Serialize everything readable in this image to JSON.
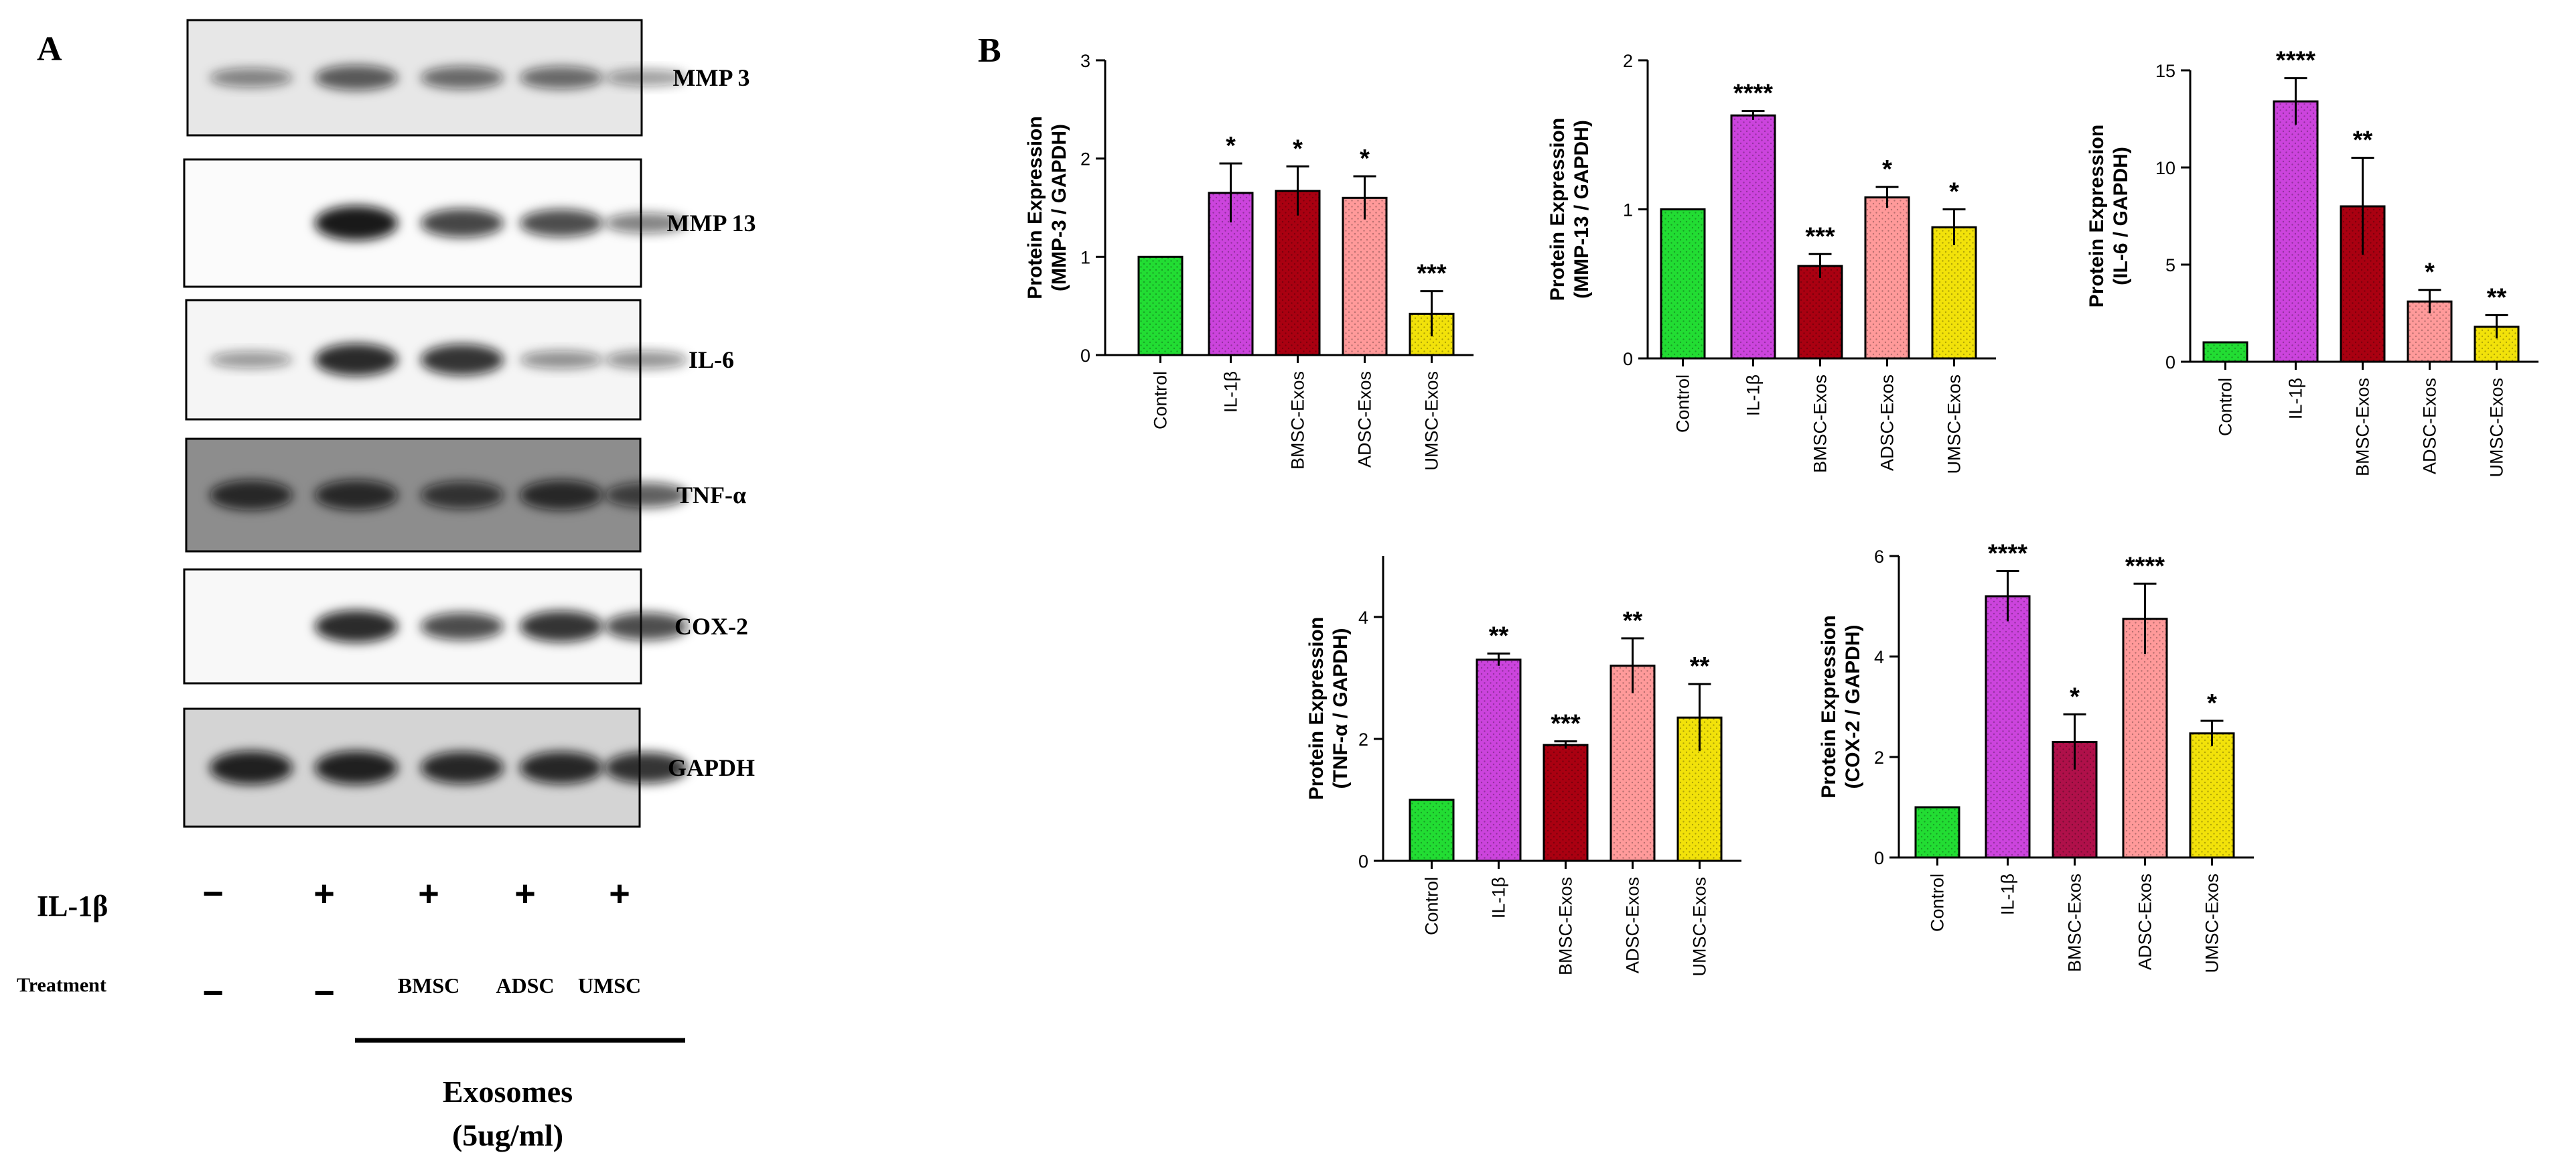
{
  "figure": {
    "panel_a_label": "A",
    "panel_b_label": "B",
    "colors": {
      "Control": "#22dd33",
      "IL-1β": "#cc44dd",
      "BMSC-Exos": "#aa0011",
      "ADSC-Exos": "#ff9a9a",
      "UMSC-Exos": "#f2e20a",
      "BMSC-Exos-alt": "#b0104a"
    }
  },
  "blot": {
    "rows": [
      {
        "label": "MMP 3",
        "intensities": [
          0.35,
          0.6,
          0.5,
          0.5,
          0.25
        ]
      },
      {
        "label": "MMP 13",
        "intensities": [
          0.0,
          1.0,
          0.75,
          0.7,
          0.4
        ]
      },
      {
        "label": "IL-6",
        "intensities": [
          0.25,
          0.9,
          0.85,
          0.3,
          0.3
        ]
      },
      {
        "label": "TNF-α",
        "intensities": [
          0.8,
          0.8,
          0.7,
          0.8,
          0.6
        ]
      },
      {
        "label": "COX-2",
        "intensities": [
          0.0,
          0.9,
          0.7,
          0.85,
          0.7
        ]
      },
      {
        "label": "GAPDH",
        "intensities": [
          0.95,
          0.95,
          0.9,
          0.9,
          0.85
        ]
      }
    ],
    "il1b_label": "IL-1β",
    "il1b_signs": [
      "−",
      "+",
      "+",
      "+",
      "+"
    ],
    "treatment_label": "Treatment",
    "treatment_values": [
      "−",
      "−",
      "BMSC",
      "ADSC",
      "UMSC"
    ],
    "exosomes_label": "Exosomes",
    "dose_label": "(5ug/ml)"
  },
  "chart_data": [
    {
      "type": "bar",
      "ylabel": [
        "Protein Expression",
        "(MMP-3 / GAPDH)"
      ],
      "categories": [
        "Control",
        "IL-1β",
        "BMSC-Exos",
        "ADSC-Exos",
        "UMSC-Exos"
      ],
      "values": [
        1.0,
        1.65,
        1.67,
        1.6,
        0.42
      ],
      "errors": [
        0,
        0.3,
        0.25,
        0.22,
        0.23
      ],
      "significance": [
        "",
        "*",
        "*",
        "*",
        "***"
      ],
      "ylim": [
        0,
        3
      ],
      "yticks": [
        0,
        1,
        2,
        3
      ],
      "ytick_labels": [
        "0",
        "1",
        "2",
        "3"
      ]
    },
    {
      "type": "bar",
      "ylabel": [
        "Protein Expression",
        "(MMP-13 / GAPDH)"
      ],
      "categories": [
        "Control",
        "IL-1β",
        "BMSC-Exos",
        "ADSC-Exos",
        "UMSC-Exos"
      ],
      "values": [
        1.0,
        1.63,
        0.62,
        1.08,
        0.88
      ],
      "errors": [
        0,
        0.03,
        0.08,
        0.07,
        0.12
      ],
      "significance": [
        "",
        "****",
        "***",
        "*",
        "*"
      ],
      "ylim": [
        0,
        2
      ],
      "yticks": [
        0,
        1,
        2
      ],
      "ytick_labels": [
        "0",
        "1",
        "2"
      ]
    },
    {
      "type": "bar",
      "ylabel": [
        "Protein Expression",
        "(IL-6 / GAPDH)"
      ],
      "categories": [
        "Control",
        "IL-1β",
        "BMSC-Exos",
        "ADSC-Exos",
        "UMSC-Exos"
      ],
      "values": [
        1.0,
        13.4,
        8.0,
        3.1,
        1.8
      ],
      "errors": [
        0,
        1.2,
        2.5,
        0.6,
        0.6
      ],
      "significance": [
        "",
        "****",
        "**",
        "*",
        "**"
      ],
      "ylim": [
        0,
        15
      ],
      "yticks": [
        0,
        5,
        10,
        15
      ],
      "ytick_labels": [
        "0",
        "5",
        "10",
        "15"
      ]
    },
    {
      "type": "bar",
      "ylabel": [
        "Protein Expression",
        "(TNF-α / GAPDH)"
      ],
      "categories": [
        "Control",
        "IL-1β",
        "BMSC-Exos",
        "ADSC-Exos",
        "UMSC-Exos"
      ],
      "values": [
        1.0,
        3.3,
        1.9,
        3.2,
        2.35
      ],
      "errors": [
        0,
        0.1,
        0.06,
        0.45,
        0.55
      ],
      "significance": [
        "",
        "**",
        "***",
        "**",
        "**"
      ],
      "ylim": [
        0,
        5
      ],
      "yticks": [
        0,
        2,
        4
      ],
      "ytick_labels": [
        "0",
        "2",
        "4"
      ]
    },
    {
      "type": "bar",
      "ylabel": [
        "Protein Expression",
        "(COX-2 / GAPDH)"
      ],
      "categories": [
        "Control",
        "IL-1β",
        "BMSC-Exos",
        "ADSC-Exos",
        "UMSC-Exos"
      ],
      "values": [
        1.0,
        5.2,
        2.3,
        4.75,
        2.47
      ],
      "errors": [
        0,
        0.5,
        0.55,
        0.7,
        0.25
      ],
      "significance": [
        "",
        "****",
        "*",
        "****",
        "*"
      ],
      "ylim": [
        0,
        6
      ],
      "yticks": [
        0,
        2,
        4,
        6
      ],
      "ytick_labels": [
        "0",
        "2",
        "4",
        "6"
      ]
    }
  ]
}
